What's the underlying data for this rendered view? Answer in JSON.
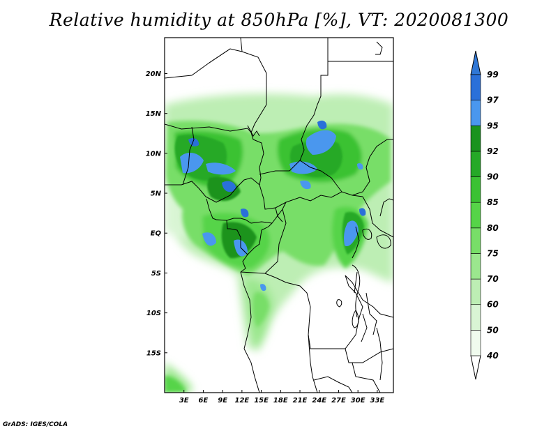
{
  "title": "Relative humidity at 850hPa [%], VT: 2020081300",
  "credit": "GrADS: IGES/COLA",
  "map": {
    "lon_range": [
      0,
      35.5
    ],
    "lat_range": [
      -20,
      24.5
    ],
    "lat_ticks": [
      {
        "value": 20,
        "label": "20N"
      },
      {
        "value": 15,
        "label": "15N"
      },
      {
        "value": 10,
        "label": "10N"
      },
      {
        "value": 5,
        "label": "5N"
      },
      {
        "value": 0,
        "label": "EQ"
      },
      {
        "value": -5,
        "label": "5S"
      },
      {
        "value": -10,
        "label": "10S"
      },
      {
        "value": -15,
        "label": "15S"
      }
    ],
    "lon_ticks": [
      {
        "value": 3,
        "label": "3E"
      },
      {
        "value": 6,
        "label": "6E"
      },
      {
        "value": 9,
        "label": "9E"
      },
      {
        "value": 12,
        "label": "12E"
      },
      {
        "value": 15,
        "label": "15E"
      },
      {
        "value": 18,
        "label": "18E"
      },
      {
        "value": 21,
        "label": "21E"
      },
      {
        "value": 24,
        "label": "24E"
      },
      {
        "value": 27,
        "label": "27E"
      },
      {
        "value": 30,
        "label": "30E"
      },
      {
        "value": 33,
        "label": "33E"
      }
    ]
  },
  "colorbar": {
    "levels": [
      {
        "label": "40",
        "color": "#f0fbee"
      },
      {
        "label": "50",
        "color": "#d9f5d4"
      },
      {
        "label": "60",
        "color": "#bdeeb4"
      },
      {
        "label": "70",
        "color": "#9be78e"
      },
      {
        "label": "75",
        "color": "#78de68"
      },
      {
        "label": "80",
        "color": "#56d448"
      },
      {
        "label": "85",
        "color": "#3bc233"
      },
      {
        "label": "90",
        "color": "#25a927"
      },
      {
        "label": "92",
        "color": "#1a931e"
      },
      {
        "label": "95",
        "color": "#4a97ee"
      },
      {
        "label": "97",
        "color": "#2a70d9"
      },
      {
        "label": "99",
        "color": "#1c4fb3"
      }
    ],
    "under_color": "#ffffff",
    "over_color": "#2f77d6"
  }
}
